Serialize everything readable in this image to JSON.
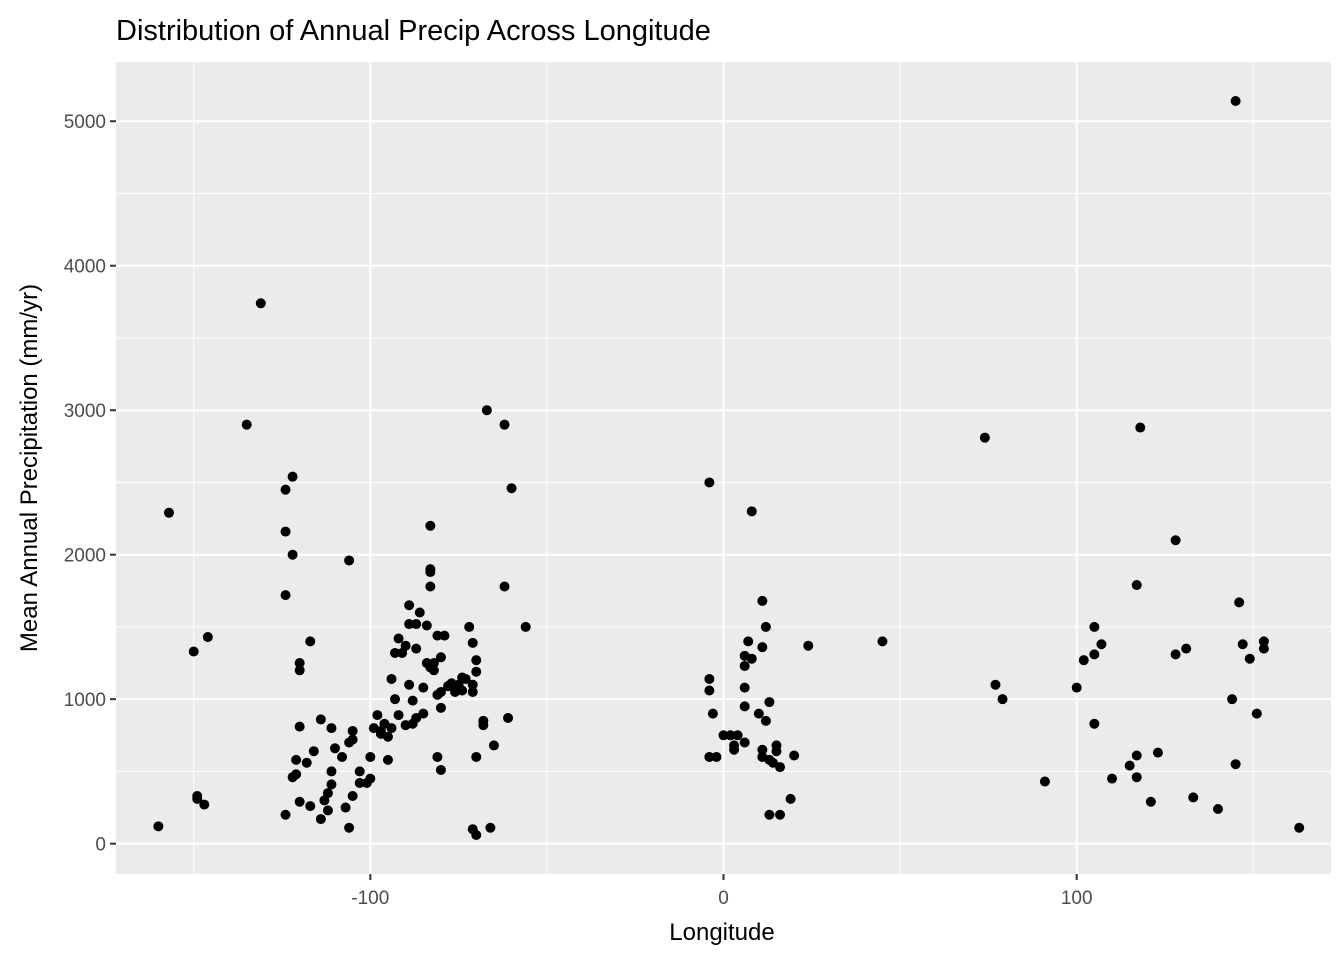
{
  "chart_data": {
    "type": "scatter",
    "title": "Distribution of Annual Precip Across Longitude",
    "xlabel": "Longitude",
    "ylabel": "Mean Annual Precipitation (mm/yr)",
    "xlim": [
      -172,
      172
    ],
    "ylim": [
      -210,
      5410
    ],
    "x_ticks": [
      -100,
      0,
      100
    ],
    "x_tick_labels": [
      "-100",
      "0",
      "100"
    ],
    "y_ticks": [
      0,
      1000,
      2000,
      3000,
      4000,
      5000
    ],
    "y_tick_labels": [
      "0",
      "1000",
      "2000",
      "3000",
      "4000",
      "5000"
    ],
    "grid": true,
    "legend": "none",
    "colors": {
      "panel": "#ebebeb",
      "grid": "#ffffff",
      "point": "#000000"
    },
    "points": [
      {
        "x": -157,
        "y": 2290
      },
      {
        "x": -160,
        "y": 120
      },
      {
        "x": -150,
        "y": 1330
      },
      {
        "x": -149,
        "y": 330
      },
      {
        "x": -149,
        "y": 310
      },
      {
        "x": -147,
        "y": 270
      },
      {
        "x": -146,
        "y": 1430
      },
      {
        "x": -135,
        "y": 2900
      },
      {
        "x": -131,
        "y": 3740
      },
      {
        "x": -124,
        "y": 2450
      },
      {
        "x": -124,
        "y": 2160
      },
      {
        "x": -122,
        "y": 2540
      },
      {
        "x": -122,
        "y": 2000
      },
      {
        "x": -124,
        "y": 1720
      },
      {
        "x": -120,
        "y": 1250
      },
      {
        "x": -120,
        "y": 1200
      },
      {
        "x": -124,
        "y": 200
      },
      {
        "x": -122,
        "y": 460
      },
      {
        "x": -121,
        "y": 580
      },
      {
        "x": -121,
        "y": 480
      },
      {
        "x": -120,
        "y": 290
      },
      {
        "x": -120,
        "y": 810
      },
      {
        "x": -118,
        "y": 560
      },
      {
        "x": -117,
        "y": 260
      },
      {
        "x": -117,
        "y": 1400
      },
      {
        "x": -116,
        "y": 640
      },
      {
        "x": -114,
        "y": 860
      },
      {
        "x": -114,
        "y": 170
      },
      {
        "x": -113,
        "y": 300
      },
      {
        "x": -112,
        "y": 350
      },
      {
        "x": -112,
        "y": 230
      },
      {
        "x": -111,
        "y": 800
      },
      {
        "x": -111,
        "y": 500
      },
      {
        "x": -111,
        "y": 410
      },
      {
        "x": -110,
        "y": 660
      },
      {
        "x": -108,
        "y": 600
      },
      {
        "x": -107,
        "y": 250
      },
      {
        "x": -106,
        "y": 1960
      },
      {
        "x": -106,
        "y": 700
      },
      {
        "x": -105,
        "y": 780
      },
      {
        "x": -105,
        "y": 720
      },
      {
        "x": -106,
        "y": 110
      },
      {
        "x": -105,
        "y": 330
      },
      {
        "x": -103,
        "y": 500
      },
      {
        "x": -103,
        "y": 420
      },
      {
        "x": -101,
        "y": 420
      },
      {
        "x": -100,
        "y": 450
      },
      {
        "x": -100,
        "y": 600
      },
      {
        "x": -99,
        "y": 800
      },
      {
        "x": -98,
        "y": 890
      },
      {
        "x": -97,
        "y": 780
      },
      {
        "x": -97,
        "y": 760
      },
      {
        "x": -96,
        "y": 830
      },
      {
        "x": -95,
        "y": 740
      },
      {
        "x": -95,
        "y": 580
      },
      {
        "x": -94,
        "y": 800
      },
      {
        "x": -94,
        "y": 1140
      },
      {
        "x": -93,
        "y": 1320
      },
      {
        "x": -93,
        "y": 1000
      },
      {
        "x": -92,
        "y": 1420
      },
      {
        "x": -92,
        "y": 890
      },
      {
        "x": -91,
        "y": 1320
      },
      {
        "x": -90,
        "y": 1370
      },
      {
        "x": -90,
        "y": 820
      },
      {
        "x": -89,
        "y": 1650
      },
      {
        "x": -89,
        "y": 1520
      },
      {
        "x": -89,
        "y": 1100
      },
      {
        "x": -88,
        "y": 990
      },
      {
        "x": -88,
        "y": 830
      },
      {
        "x": -87,
        "y": 1520
      },
      {
        "x": -87,
        "y": 1350
      },
      {
        "x": -87,
        "y": 870
      },
      {
        "x": -86,
        "y": 1600
      },
      {
        "x": -85,
        "y": 900
      },
      {
        "x": -85,
        "y": 1080
      },
      {
        "x": -84,
        "y": 1510
      },
      {
        "x": -84,
        "y": 1250
      },
      {
        "x": -83,
        "y": 2200
      },
      {
        "x": -83,
        "y": 1900
      },
      {
        "x": -83,
        "y": 1880
      },
      {
        "x": -83,
        "y": 1780
      },
      {
        "x": -83,
        "y": 1220
      },
      {
        "x": -82,
        "y": 1250
      },
      {
        "x": -82,
        "y": 1200
      },
      {
        "x": -81,
        "y": 1440
      },
      {
        "x": -81,
        "y": 1030
      },
      {
        "x": -81,
        "y": 600
      },
      {
        "x": -80,
        "y": 1290
      },
      {
        "x": -80,
        "y": 1050
      },
      {
        "x": -80,
        "y": 940
      },
      {
        "x": -80,
        "y": 510
      },
      {
        "x": -79,
        "y": 1440
      },
      {
        "x": -78,
        "y": 1090
      },
      {
        "x": -77,
        "y": 1110
      },
      {
        "x": -76,
        "y": 1050
      },
      {
        "x": -75,
        "y": 1100
      },
      {
        "x": -74,
        "y": 1150
      },
      {
        "x": -74,
        "y": 1060
      },
      {
        "x": -73,
        "y": 1140
      },
      {
        "x": -72,
        "y": 1500
      },
      {
        "x": -71,
        "y": 1390
      },
      {
        "x": -71,
        "y": 1100
      },
      {
        "x": -71,
        "y": 1050
      },
      {
        "x": -70,
        "y": 1270
      },
      {
        "x": -70,
        "y": 1190
      },
      {
        "x": -70,
        "y": 600
      },
      {
        "x": -71,
        "y": 100
      },
      {
        "x": -70,
        "y": 60
      },
      {
        "x": -67,
        "y": 3000
      },
      {
        "x": -68,
        "y": 850
      },
      {
        "x": -68,
        "y": 820
      },
      {
        "x": -66,
        "y": 110
      },
      {
        "x": -65,
        "y": 680
      },
      {
        "x": -62,
        "y": 2900
      },
      {
        "x": -62,
        "y": 1780
      },
      {
        "x": -61,
        "y": 870
      },
      {
        "x": -60,
        "y": 2460
      },
      {
        "x": -56,
        "y": 1500
      },
      {
        "x": -4,
        "y": 2500
      },
      {
        "x": -4,
        "y": 1140
      },
      {
        "x": -4,
        "y": 1060
      },
      {
        "x": -3,
        "y": 900
      },
      {
        "x": -4,
        "y": 600
      },
      {
        "x": -2,
        "y": 600
      },
      {
        "x": 0,
        "y": 750
      },
      {
        "x": 2,
        "y": 750
      },
      {
        "x": 3,
        "y": 680
      },
      {
        "x": 3,
        "y": 650
      },
      {
        "x": 4,
        "y": 750
      },
      {
        "x": 6,
        "y": 1300
      },
      {
        "x": 6,
        "y": 1230
      },
      {
        "x": 6,
        "y": 1080
      },
      {
        "x": 6,
        "y": 950
      },
      {
        "x": 6,
        "y": 700
      },
      {
        "x": 7,
        "y": 1400
      },
      {
        "x": 8,
        "y": 2300
      },
      {
        "x": 8,
        "y": 1280
      },
      {
        "x": 10,
        "y": 900
      },
      {
        "x": 11,
        "y": 650
      },
      {
        "x": 11,
        "y": 600
      },
      {
        "x": 11,
        "y": 1360
      },
      {
        "x": 11,
        "y": 1680
      },
      {
        "x": 12,
        "y": 1500
      },
      {
        "x": 12,
        "y": 850
      },
      {
        "x": 13,
        "y": 980
      },
      {
        "x": 13,
        "y": 580
      },
      {
        "x": 13,
        "y": 200
      },
      {
        "x": 14,
        "y": 560
      },
      {
        "x": 15,
        "y": 680
      },
      {
        "x": 15,
        "y": 640
      },
      {
        "x": 16,
        "y": 530
      },
      {
        "x": 16,
        "y": 200
      },
      {
        "x": 19,
        "y": 310
      },
      {
        "x": 20,
        "y": 610
      },
      {
        "x": 24,
        "y": 1370
      },
      {
        "x": 45,
        "y": 1400
      },
      {
        "x": 74,
        "y": 2810
      },
      {
        "x": 77,
        "y": 1100
      },
      {
        "x": 79,
        "y": 1000
      },
      {
        "x": 91,
        "y": 430
      },
      {
        "x": 100,
        "y": 1080
      },
      {
        "x": 102,
        "y": 1270
      },
      {
        "x": 105,
        "y": 1500
      },
      {
        "x": 105,
        "y": 1310
      },
      {
        "x": 105,
        "y": 830
      },
      {
        "x": 107,
        "y": 1380
      },
      {
        "x": 110,
        "y": 450
      },
      {
        "x": 115,
        "y": 540
      },
      {
        "x": 117,
        "y": 1790
      },
      {
        "x": 117,
        "y": 610
      },
      {
        "x": 117,
        "y": 460
      },
      {
        "x": 118,
        "y": 2880
      },
      {
        "x": 121,
        "y": 290
      },
      {
        "x": 123,
        "y": 630
      },
      {
        "x": 128,
        "y": 2100
      },
      {
        "x": 128,
        "y": 1310
      },
      {
        "x": 131,
        "y": 1350
      },
      {
        "x": 133,
        "y": 320
      },
      {
        "x": 140,
        "y": 240
      },
      {
        "x": 144,
        "y": 1000
      },
      {
        "x": 145,
        "y": 550
      },
      {
        "x": 145,
        "y": 5140
      },
      {
        "x": 146,
        "y": 1670
      },
      {
        "x": 147,
        "y": 1380
      },
      {
        "x": 149,
        "y": 1280
      },
      {
        "x": 151,
        "y": 900
      },
      {
        "x": 153,
        "y": 1400
      },
      {
        "x": 153,
        "y": 1350
      },
      {
        "x": 163,
        "y": 110
      }
    ]
  }
}
